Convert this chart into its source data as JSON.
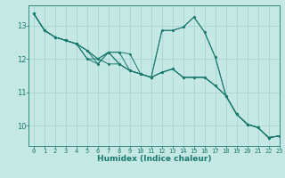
{
  "title": "",
  "xlabel": "Humidex (Indice chaleur)",
  "xlim": [
    -0.5,
    23
  ],
  "ylim": [
    9.4,
    13.6
  ],
  "bg_color": "#c5e8e5",
  "grid_color": "#a8d5d0",
  "line_color": "#1a7a6e",
  "series": [
    [
      13.35,
      12.85,
      12.65,
      12.55,
      12.45,
      12.25,
      11.85,
      12.2,
      12.2,
      12.15,
      11.55,
      11.45,
      12.85,
      12.85,
      12.95,
      13.25,
      12.8,
      12.05,
      10.9,
      10.35,
      10.05,
      9.95,
      9.65,
      9.7
    ],
    [
      13.35,
      12.85,
      12.65,
      12.55,
      12.45,
      12.25,
      12.0,
      12.2,
      12.2,
      11.65,
      11.55,
      11.45,
      12.85,
      12.85,
      12.95,
      13.25,
      12.8,
      12.05,
      10.9,
      10.35,
      10.05,
      9.95,
      9.65,
      9.7
    ],
    [
      13.35,
      12.85,
      12.65,
      12.55,
      12.45,
      12.0,
      12.0,
      12.2,
      11.85,
      11.65,
      11.55,
      11.45,
      11.6,
      11.7,
      11.45,
      11.45,
      11.45,
      11.2,
      10.9,
      10.35,
      10.05,
      9.95,
      9.65,
      9.7
    ],
    [
      13.35,
      12.85,
      12.65,
      12.55,
      12.45,
      12.0,
      11.85,
      12.2,
      11.85,
      11.65,
      11.55,
      11.45,
      11.6,
      11.7,
      11.45,
      11.45,
      11.45,
      11.2,
      10.9,
      10.35,
      10.05,
      9.95,
      9.65,
      9.7
    ],
    [
      13.35,
      12.85,
      12.65,
      12.55,
      12.45,
      12.25,
      12.0,
      11.85,
      11.85,
      11.65,
      11.55,
      11.45,
      11.6,
      11.7,
      11.45,
      11.45,
      11.45,
      11.2,
      10.9,
      10.35,
      10.05,
      9.95,
      9.65,
      9.7
    ]
  ],
  "yticks": [
    10,
    11,
    12,
    13
  ],
  "xticks": [
    0,
    1,
    2,
    3,
    4,
    5,
    6,
    7,
    8,
    9,
    10,
    11,
    12,
    13,
    14,
    15,
    16,
    17,
    18,
    19,
    20,
    21,
    22,
    23
  ]
}
